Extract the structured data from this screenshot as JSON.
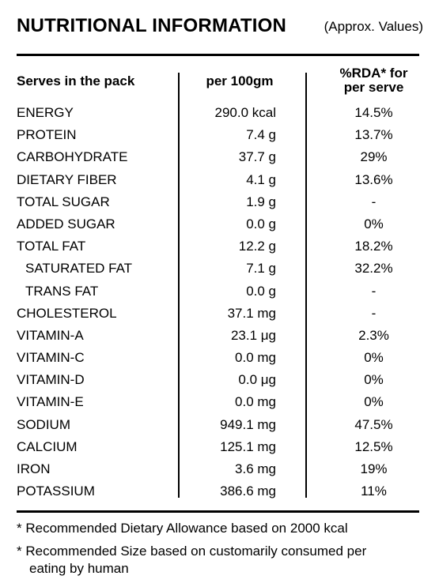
{
  "header": {
    "title": "NUTRITIONAL INFORMATION",
    "subtitle": "(Approx. Values)"
  },
  "columns": {
    "serves": "Serves in the pack",
    "per100": "per 100gm",
    "rda_line1": "%RDA* for",
    "rda_line2": "per serve"
  },
  "rows": [
    {
      "name": "ENERGY",
      "value": "290.0 kcal",
      "rda": "14.5%",
      "indent": false
    },
    {
      "name": "PROTEIN",
      "value": "7.4 g",
      "rda": "13.7%",
      "indent": false
    },
    {
      "name": "CARBOHYDRATE",
      "value": "37.7 g",
      "rda": "29%",
      "indent": false
    },
    {
      "name": "DIETARY FIBER",
      "value": "4.1 g",
      "rda": "13.6%",
      "indent": false
    },
    {
      "name": "TOTAL SUGAR",
      "value": "1.9 g",
      "rda": "-",
      "indent": false
    },
    {
      "name": "ADDED SUGAR",
      "value": "0.0 g",
      "rda": "0%",
      "indent": false
    },
    {
      "name": "TOTAL FAT",
      "value": "12.2 g",
      "rda": "18.2%",
      "indent": false
    },
    {
      "name": "SATURATED FAT",
      "value": "7.1 g",
      "rda": "32.2%",
      "indent": true
    },
    {
      "name": "TRANS FAT",
      "value": "0.0 g",
      "rda": "-",
      "indent": true
    },
    {
      "name": "CHOLESTEROL",
      "value": "37.1 mg",
      "rda": "-",
      "indent": false
    },
    {
      "name": "VITAMIN-A",
      "value": "23.1 μg",
      "rda": "2.3%",
      "indent": false
    },
    {
      "name": "VITAMIN-C",
      "value": "0.0 mg",
      "rda": "0%",
      "indent": false
    },
    {
      "name": "VITAMIN-D",
      "value": "0.0 μg",
      "rda": "0%",
      "indent": false
    },
    {
      "name": "VITAMIN-E",
      "value": "0.0 mg",
      "rda": "0%",
      "indent": false
    },
    {
      "name": "SODIUM",
      "value": "949.1 mg",
      "rda": "47.5%",
      "indent": false
    },
    {
      "name": "CALCIUM",
      "value": "125.1 mg",
      "rda": "12.5%",
      "indent": false
    },
    {
      "name": "IRON",
      "value": "3.6 mg",
      "rda": "19%",
      "indent": false
    },
    {
      "name": "POTASSIUM",
      "value": "386.6 mg",
      "rda": "11%",
      "indent": false
    }
  ],
  "footnotes": {
    "rda_note": "* Recommended Dietary Allowance based on 2000 kcal",
    "size_note_line1": "* Recommended Size based on customarily consumed per",
    "size_note_line2": "eating by human"
  }
}
